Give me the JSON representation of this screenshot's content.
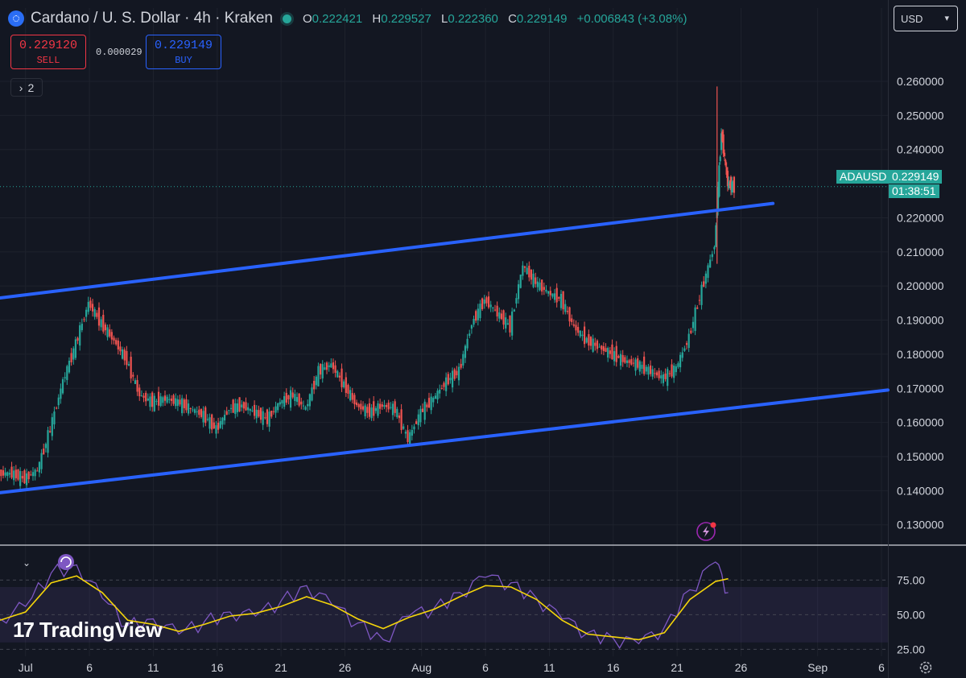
{
  "header": {
    "symbol_title": "Cardano / U. S. Dollar · 4h · Kraken",
    "open_label": "O",
    "open": "0.222421",
    "high_label": "H",
    "high": "0.229527",
    "low_label": "L",
    "low": "0.222360",
    "close_label": "C",
    "close": "0.229149",
    "change": "+0.006843 (+3.08%)"
  },
  "trade": {
    "sell_price": "0.229120",
    "sell_label": "SELL",
    "spread": "0.000029",
    "buy_price": "0.229149",
    "buy_label": "BUY"
  },
  "indicator_count": "2",
  "currency": "USD",
  "price_tag": {
    "symbol": "ADAUSD",
    "price": "0.229149",
    "countdown": "01:38:51"
  },
  "brand": "TradingView",
  "colors": {
    "background": "#131722",
    "up": "#26a69a",
    "down": "#ef5350",
    "channel": "#2962ff",
    "rsi": "#7e57c2",
    "rsi_ma": "#f5d50a"
  },
  "icons": {
    "symbol_logo": "cardano-logo-icon",
    "market_status": "market-open-dot-icon",
    "collapse": "chevron-down-icon",
    "settings": "gear-icon",
    "alert": "lightning-icon",
    "replay": "refresh-icon"
  },
  "chart_data": [
    {
      "type": "candlestick",
      "title": "Cardano / U. S. Dollar · 4h · Kraken",
      "y_tick_labels": [
        "0.260000",
        "0.250000",
        "0.240000",
        "0.220000",
        "0.210000",
        "0.200000",
        "0.190000",
        "0.180000",
        "0.170000",
        "0.160000",
        "0.150000",
        "0.140000",
        "0.130000"
      ],
      "y_ticks": [
        0.26,
        0.25,
        0.24,
        0.22,
        0.21,
        0.2,
        0.19,
        0.18,
        0.17,
        0.16,
        0.15,
        0.14,
        0.13
      ],
      "ylim": [
        0.1245,
        0.2685
      ],
      "x_tick_labels": [
        "Jul",
        "6",
        "11",
        "16",
        "21",
        "26",
        "Aug",
        "6",
        "11",
        "16",
        "21",
        "26",
        "Sep",
        "6"
      ],
      "x_ticks": [
        "2024-07-01",
        "2024-07-06",
        "2024-07-11",
        "2024-07-16",
        "2024-07-21",
        "2024-07-26",
        "2024-08-01",
        "2024-08-06",
        "2024-08-11",
        "2024-08-16",
        "2024-08-21",
        "2024-08-26",
        "2024-09-01",
        "2024-09-06"
      ],
      "xlim": [
        "2024-06-29 00:00",
        "2024-09-06 12:00"
      ],
      "last_price": 0.229149,
      "series": [
        {
          "points": [
            [
              "2024-06-29",
              0.145
            ],
            [
              "2024-06-30",
              0.1435
            ],
            [
              "2024-07-01",
              0.146
            ],
            [
              "2024-07-02",
              0.158
            ],
            [
              "2024-07-03",
              0.172
            ],
            [
              "2024-07-04",
              0.183
            ],
            [
              "2024-07-05",
              0.195
            ],
            [
              "2024-07-06",
              0.189
            ],
            [
              "2024-07-07",
              0.184
            ],
            [
              "2024-07-08",
              0.178
            ],
            [
              "2024-07-09",
              0.168
            ],
            [
              "2024-07-10",
              0.166
            ],
            [
              "2024-07-11",
              0.167
            ],
            [
              "2024-07-12",
              0.166
            ],
            [
              "2024-07-13",
              0.164
            ],
            [
              "2024-07-14",
              0.162
            ],
            [
              "2024-07-15",
              0.158
            ],
            [
              "2024-07-16",
              0.164
            ],
            [
              "2024-07-17",
              0.165
            ],
            [
              "2024-07-18",
              0.163
            ],
            [
              "2024-07-19",
              0.161
            ],
            [
              "2024-07-20",
              0.166
            ],
            [
              "2024-07-21",
              0.168
            ],
            [
              "2024-07-22",
              0.164
            ],
            [
              "2024-07-23",
              0.175
            ],
            [
              "2024-07-24",
              0.177
            ],
            [
              "2024-07-25",
              0.171
            ],
            [
              "2024-07-26",
              0.165
            ],
            [
              "2024-07-27",
              0.163
            ],
            [
              "2024-07-28",
              0.165
            ],
            [
              "2024-07-29",
              0.164
            ],
            [
              "2024-07-30",
              0.155
            ],
            [
              "2024-07-31",
              0.163
            ],
            [
              "2024-08-01",
              0.167
            ],
            [
              "2024-08-02",
              0.172
            ],
            [
              "2024-08-03",
              0.175
            ],
            [
              "2024-08-04",
              0.189
            ],
            [
              "2024-08-05",
              0.196
            ],
            [
              "2024-08-06",
              0.192
            ],
            [
              "2024-08-07",
              0.188
            ],
            [
              "2024-08-08",
              0.206
            ],
            [
              "2024-08-09",
              0.201
            ],
            [
              "2024-08-10",
              0.198
            ],
            [
              "2024-08-11",
              0.196
            ],
            [
              "2024-08-12",
              0.188
            ],
            [
              "2024-08-13",
              0.184
            ],
            [
              "2024-08-14",
              0.182
            ],
            [
              "2024-08-15",
              0.18
            ],
            [
              "2024-08-16",
              0.178
            ],
            [
              "2024-08-17",
              0.177
            ],
            [
              "2024-08-18",
              0.175
            ],
            [
              "2024-08-19",
              0.173
            ],
            [
              "2024-08-20",
              0.176
            ],
            [
              "2024-08-21",
              0.185
            ],
            [
              "2024-08-22",
              0.199
            ],
            [
              "2024-08-23",
              0.212
            ],
            [
              "2024-08-24",
              0.245
            ],
            [
              "2024-08-24 12:00",
              0.23
            ],
            [
              "2024-08-25",
              0.229
            ]
          ]
        },
        {
          "type": "line",
          "name": "channel-upper",
          "points": [
            [
              "2024-06-29",
              0.1965
            ],
            [
              "2024-08-28 12:00",
              0.2242
            ]
          ]
        },
        {
          "type": "line",
          "name": "channel-lower",
          "points": [
            [
              "2024-06-29",
              0.1394
            ],
            [
              "2024-09-06 12:00",
              0.1695
            ]
          ]
        }
      ]
    },
    {
      "type": "line",
      "y_tick_labels": [
        "75.00",
        "50.00",
        "25.00"
      ],
      "y_ticks": [
        75,
        50,
        25
      ],
      "ylim": [
        20,
        95
      ],
      "band": [
        30,
        70
      ],
      "series": [
        {
          "color": "#7e57c2",
          "points": [
            [
              "2024-06-29",
              47
            ],
            [
              "2024-07-01",
              56
            ],
            [
              "2024-07-03",
              80
            ],
            [
              "2024-07-05",
              86
            ],
            [
              "2024-07-07",
              62
            ],
            [
              "2024-07-09",
              42
            ],
            [
              "2024-07-11",
              47
            ],
            [
              "2024-07-13",
              36
            ],
            [
              "2024-07-15",
              45
            ],
            [
              "2024-07-17",
              52
            ],
            [
              "2024-07-19",
              49
            ],
            [
              "2024-07-21",
              60
            ],
            [
              "2024-07-23",
              71
            ],
            [
              "2024-07-25",
              57
            ],
            [
              "2024-07-27",
              44
            ],
            [
              "2024-07-29",
              32
            ],
            [
              "2024-07-31",
              49
            ],
            [
              "2024-08-02",
              55
            ],
            [
              "2024-08-04",
              66
            ],
            [
              "2024-08-06",
              77
            ],
            [
              "2024-08-08",
              73
            ],
            [
              "2024-08-10",
              62
            ],
            [
              "2024-08-12",
              47
            ],
            [
              "2024-08-14",
              37
            ],
            [
              "2024-08-16",
              33
            ],
            [
              "2024-08-18",
              29
            ],
            [
              "2024-08-20",
              41
            ],
            [
              "2024-08-22",
              68
            ],
            [
              "2024-08-24",
              88
            ],
            [
              "2024-08-25",
              66
            ]
          ]
        },
        {
          "color": "#f5d50a",
          "points": [
            [
              "2024-06-29",
              46
            ],
            [
              "2024-07-01",
              52
            ],
            [
              "2024-07-03",
              73
            ],
            [
              "2024-07-05",
              78
            ],
            [
              "2024-07-07",
              66
            ],
            [
              "2024-07-09",
              46
            ],
            [
              "2024-07-11",
              43
            ],
            [
              "2024-07-13",
              38
            ],
            [
              "2024-07-15",
              43
            ],
            [
              "2024-07-17",
              49
            ],
            [
              "2024-07-19",
              51
            ],
            [
              "2024-07-21",
              56
            ],
            [
              "2024-07-23",
              63
            ],
            [
              "2024-07-25",
              57
            ],
            [
              "2024-07-27",
              47
            ],
            [
              "2024-07-29",
              40
            ],
            [
              "2024-07-31",
              48
            ],
            [
              "2024-08-02",
              54
            ],
            [
              "2024-08-04",
              63
            ],
            [
              "2024-08-06",
              71
            ],
            [
              "2024-08-08",
              70
            ],
            [
              "2024-08-10",
              61
            ],
            [
              "2024-08-12",
              46
            ],
            [
              "2024-08-14",
              36
            ],
            [
              "2024-08-16",
              34
            ],
            [
              "2024-08-18",
              32
            ],
            [
              "2024-08-20",
              37
            ],
            [
              "2024-08-22",
              61
            ],
            [
              "2024-08-24",
              74
            ],
            [
              "2024-08-25",
              76
            ]
          ]
        }
      ]
    }
  ]
}
